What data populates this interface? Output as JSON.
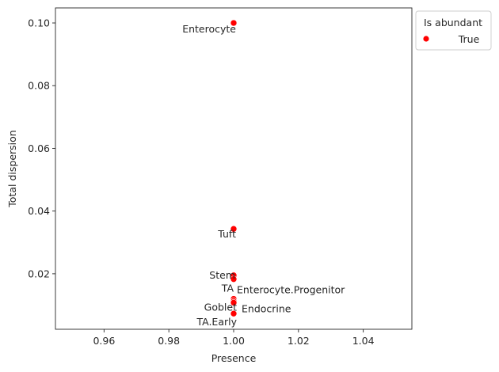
{
  "chart_data": {
    "type": "scatter",
    "title": "",
    "xlabel": "Presence",
    "ylabel": "Total dispersion",
    "xlim": [
      0.945,
      1.055
    ],
    "ylim": [
      0.0023,
      0.1048
    ],
    "xticks": [
      "0.96",
      "0.98",
      "1.00",
      "1.02",
      "1.04"
    ],
    "xtick_values": [
      0.96,
      0.98,
      1.0,
      1.02,
      1.04
    ],
    "yticks": [
      "0.02",
      "0.04",
      "0.06",
      "0.08",
      "0.10"
    ],
    "ytick_values": [
      0.02,
      0.04,
      0.06,
      0.08,
      0.1
    ],
    "grid": false,
    "legend": {
      "title": "Is abundant",
      "placement": "outside-top-right",
      "entries": [
        {
          "label": "True",
          "color": "#ff0000"
        }
      ]
    },
    "series": [
      {
        "name": "True",
        "color": "#ff0000",
        "points": [
          {
            "label": "Enterocyte",
            "x": 1.0,
            "y": 0.1
          },
          {
            "label": "Tuft",
            "x": 1.0,
            "y": 0.0343
          },
          {
            "label": "Stem",
            "x": 1.0,
            "y": 0.0195
          },
          {
            "label": "TA",
            "x": 1.0,
            "y": 0.0183
          },
          {
            "label": "Enterocyte.Progenitor",
            "x": 1.0,
            "y": 0.012
          },
          {
            "label": "Goblet",
            "x": 1.0,
            "y": 0.0113
          },
          {
            "label": "Endocrine",
            "x": 1.0,
            "y": 0.0108
          },
          {
            "label": "TA.Early",
            "x": 1.0,
            "y": 0.0073
          }
        ]
      }
    ]
  }
}
